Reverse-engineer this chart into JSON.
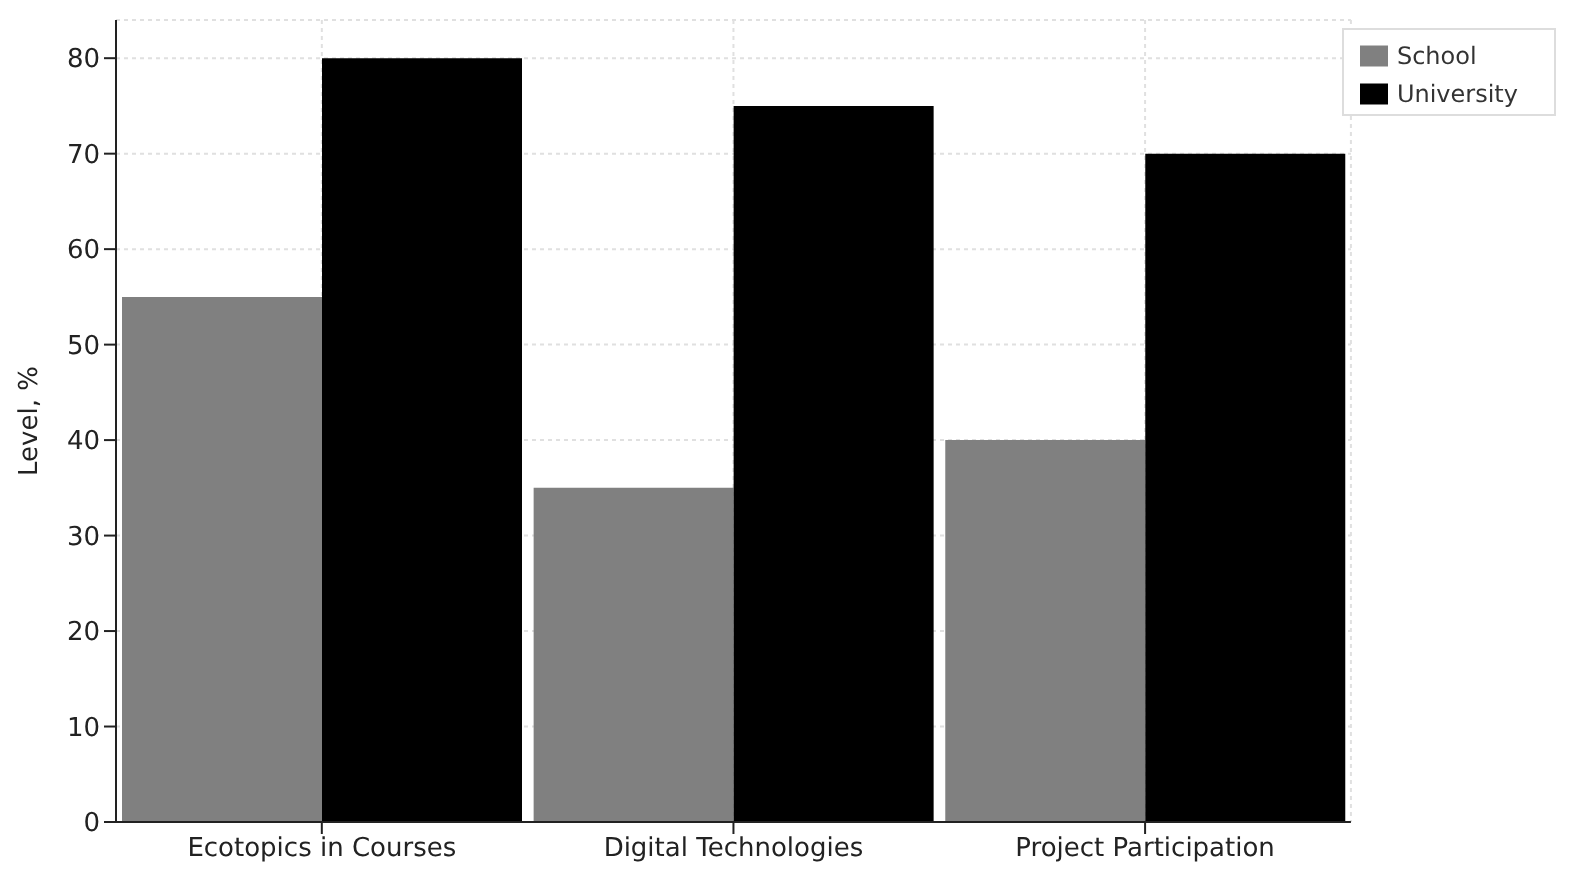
{
  "chart_data": {
    "type": "bar",
    "ylabel": "Level, %",
    "categories": [
      "Ecotopics in Courses",
      "Digital Technologies",
      "Project Participation"
    ],
    "series": [
      {
        "name": "School",
        "color": "#808080",
        "values": [
          55,
          35,
          40
        ]
      },
      {
        "name": "University",
        "color": "#000000",
        "values": [
          80,
          75,
          70
        ]
      }
    ],
    "ylim": [
      0,
      84
    ],
    "yticks": [
      0,
      10,
      20,
      30,
      40,
      50,
      60,
      70,
      80
    ],
    "grid": true,
    "legend": "top right"
  }
}
